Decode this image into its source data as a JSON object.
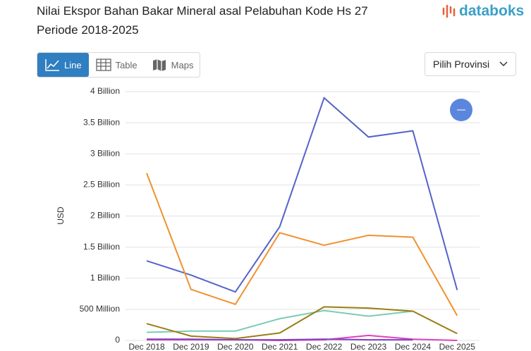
{
  "header": {
    "title": "Nilai Ekspor Bahan Bakar Mineral asal Pelabuhan Kode Hs 27 Periode 2018-2025",
    "logo": "databoks"
  },
  "controls": {
    "tabs": [
      "Line",
      "Table",
      "Maps"
    ],
    "dropdown": "Pilih Provinsi"
  },
  "chart_data": {
    "type": "line",
    "y_label": "USD",
    "categories": [
      "Dec 2018",
      "Dec 2019",
      "Dec 2020",
      "Dec 2021",
      "Dec 2022",
      "Dec 2023",
      "Dec 2024",
      "Dec 2025"
    ],
    "ylim": [
      0,
      4000000000
    ],
    "yticks": [
      0,
      {
        "value": 500000000,
        "label": "500 Million"
      },
      {
        "value": 1000000000,
        "label": "1 Billion"
      },
      {
        "value": 1500000000,
        "label": "1.5 Billion"
      },
      {
        "value": 2000000000,
        "label": "2 Billion"
      },
      {
        "value": 2500000000,
        "label": "2.5 Billion"
      },
      {
        "value": 3000000000,
        "label": "3 Billion"
      },
      {
        "value": 3500000000,
        "label": "3.5 Billion"
      },
      {
        "value": 4000000000,
        "label": "4 Billion"
      }
    ],
    "grid": true,
    "series": [
      {
        "color": "#5563c9",
        "values": [
          1280000000,
          1050000000,
          780000000,
          1830000000,
          3900000000,
          3270000000,
          3370000000,
          810000000
        ]
      },
      {
        "color": "#f0922e",
        "values": [
          2690000000,
          820000000,
          580000000,
          1730000000,
          1530000000,
          1690000000,
          1660000000,
          400000000
        ]
      },
      {
        "color": "#7ccbb5",
        "values": [
          130000000,
          150000000,
          150000000,
          350000000,
          480000000,
          390000000,
          470000000,
          null
        ]
      },
      {
        "color": "#9a7d14",
        "values": [
          270000000,
          70000000,
          30000000,
          120000000,
          540000000,
          520000000,
          470000000,
          110000000
        ]
      },
      {
        "color": "#e040c0",
        "values": [
          10000000,
          10000000,
          10000000,
          0,
          10000000,
          80000000,
          20000000,
          0
        ]
      },
      {
        "color": "#8040c0",
        "values": [
          20000000,
          20000000,
          10000000,
          10000000,
          20000000,
          10000000,
          10000000,
          null
        ]
      }
    ]
  }
}
